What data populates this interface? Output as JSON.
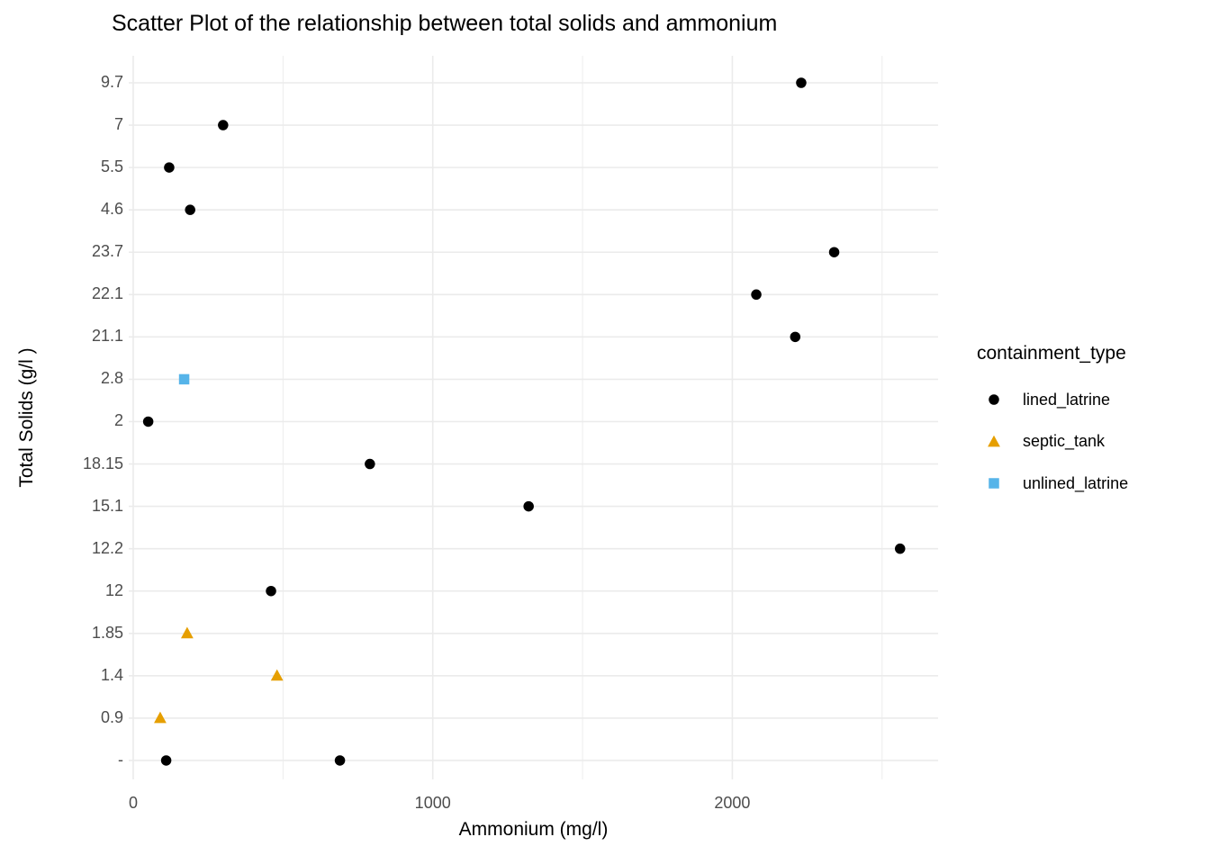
{
  "title": "Scatter Plot of the relationship between total solids and ammonium",
  "chart_data": {
    "type": "scatter",
    "title": "Scatter Plot of the relationship between total solids and ammonium",
    "xlabel": "Ammonium (mg/l)",
    "ylabel": "Total Solids (g/l )",
    "x_tick_values": [
      0,
      1000,
      2000
    ],
    "x_tick_labels": [
      "0",
      "1000",
      "2000"
    ],
    "x_minor_gridlines": [
      500,
      1500,
      2500
    ],
    "xlim": [
      -15,
      2687
    ],
    "y_axis_type": "categorical",
    "y_categories": [
      "9.7",
      "7",
      "5.5",
      "4.6",
      "23.7",
      "22.1",
      "21.1",
      "2.8",
      "2",
      "18.15",
      "15.1",
      "12.2",
      "12",
      "1.85",
      "1.4",
      "0.9",
      "-"
    ],
    "grid": true,
    "background_color": "#FFFFFF",
    "gridline_color": "#EBEBEB",
    "tick_label_color": "#4D4D4D",
    "legend": {
      "title": "containment_type",
      "position": "right",
      "items": [
        {
          "label": "lined_latrine",
          "marker": "circle",
          "color": "#000000"
        },
        {
          "label": "septic_tank",
          "marker": "triangle",
          "color": "#E69F00"
        },
        {
          "label": "unlined_latrine",
          "marker": "square",
          "color": "#56B4E9"
        }
      ]
    },
    "series": [
      {
        "name": "lined_latrine",
        "marker": "circle",
        "color": "#000000",
        "points": [
          {
            "x": 2230,
            "y": "9.7"
          },
          {
            "x": 300,
            "y": "7"
          },
          {
            "x": 120,
            "y": "5.5"
          },
          {
            "x": 190,
            "y": "4.6"
          },
          {
            "x": 2340,
            "y": "23.7"
          },
          {
            "x": 2080,
            "y": "22.1"
          },
          {
            "x": 2210,
            "y": "21.1"
          },
          {
            "x": 50,
            "y": "2"
          },
          {
            "x": 790,
            "y": "18.15"
          },
          {
            "x": 1320,
            "y": "15.1"
          },
          {
            "x": 2560,
            "y": "12.2"
          },
          {
            "x": 460,
            "y": "12"
          },
          {
            "x": 110,
            "y": "-"
          },
          {
            "x": 690,
            "y": "-"
          }
        ]
      },
      {
        "name": "septic_tank",
        "marker": "triangle",
        "color": "#E69F00",
        "points": [
          {
            "x": 180,
            "y": "1.85"
          },
          {
            "x": 480,
            "y": "1.4"
          },
          {
            "x": 90,
            "y": "0.9"
          }
        ]
      },
      {
        "name": "unlined_latrine",
        "marker": "square",
        "color": "#56B4E9",
        "points": [
          {
            "x": 170,
            "y": "2.8"
          }
        ]
      }
    ]
  }
}
